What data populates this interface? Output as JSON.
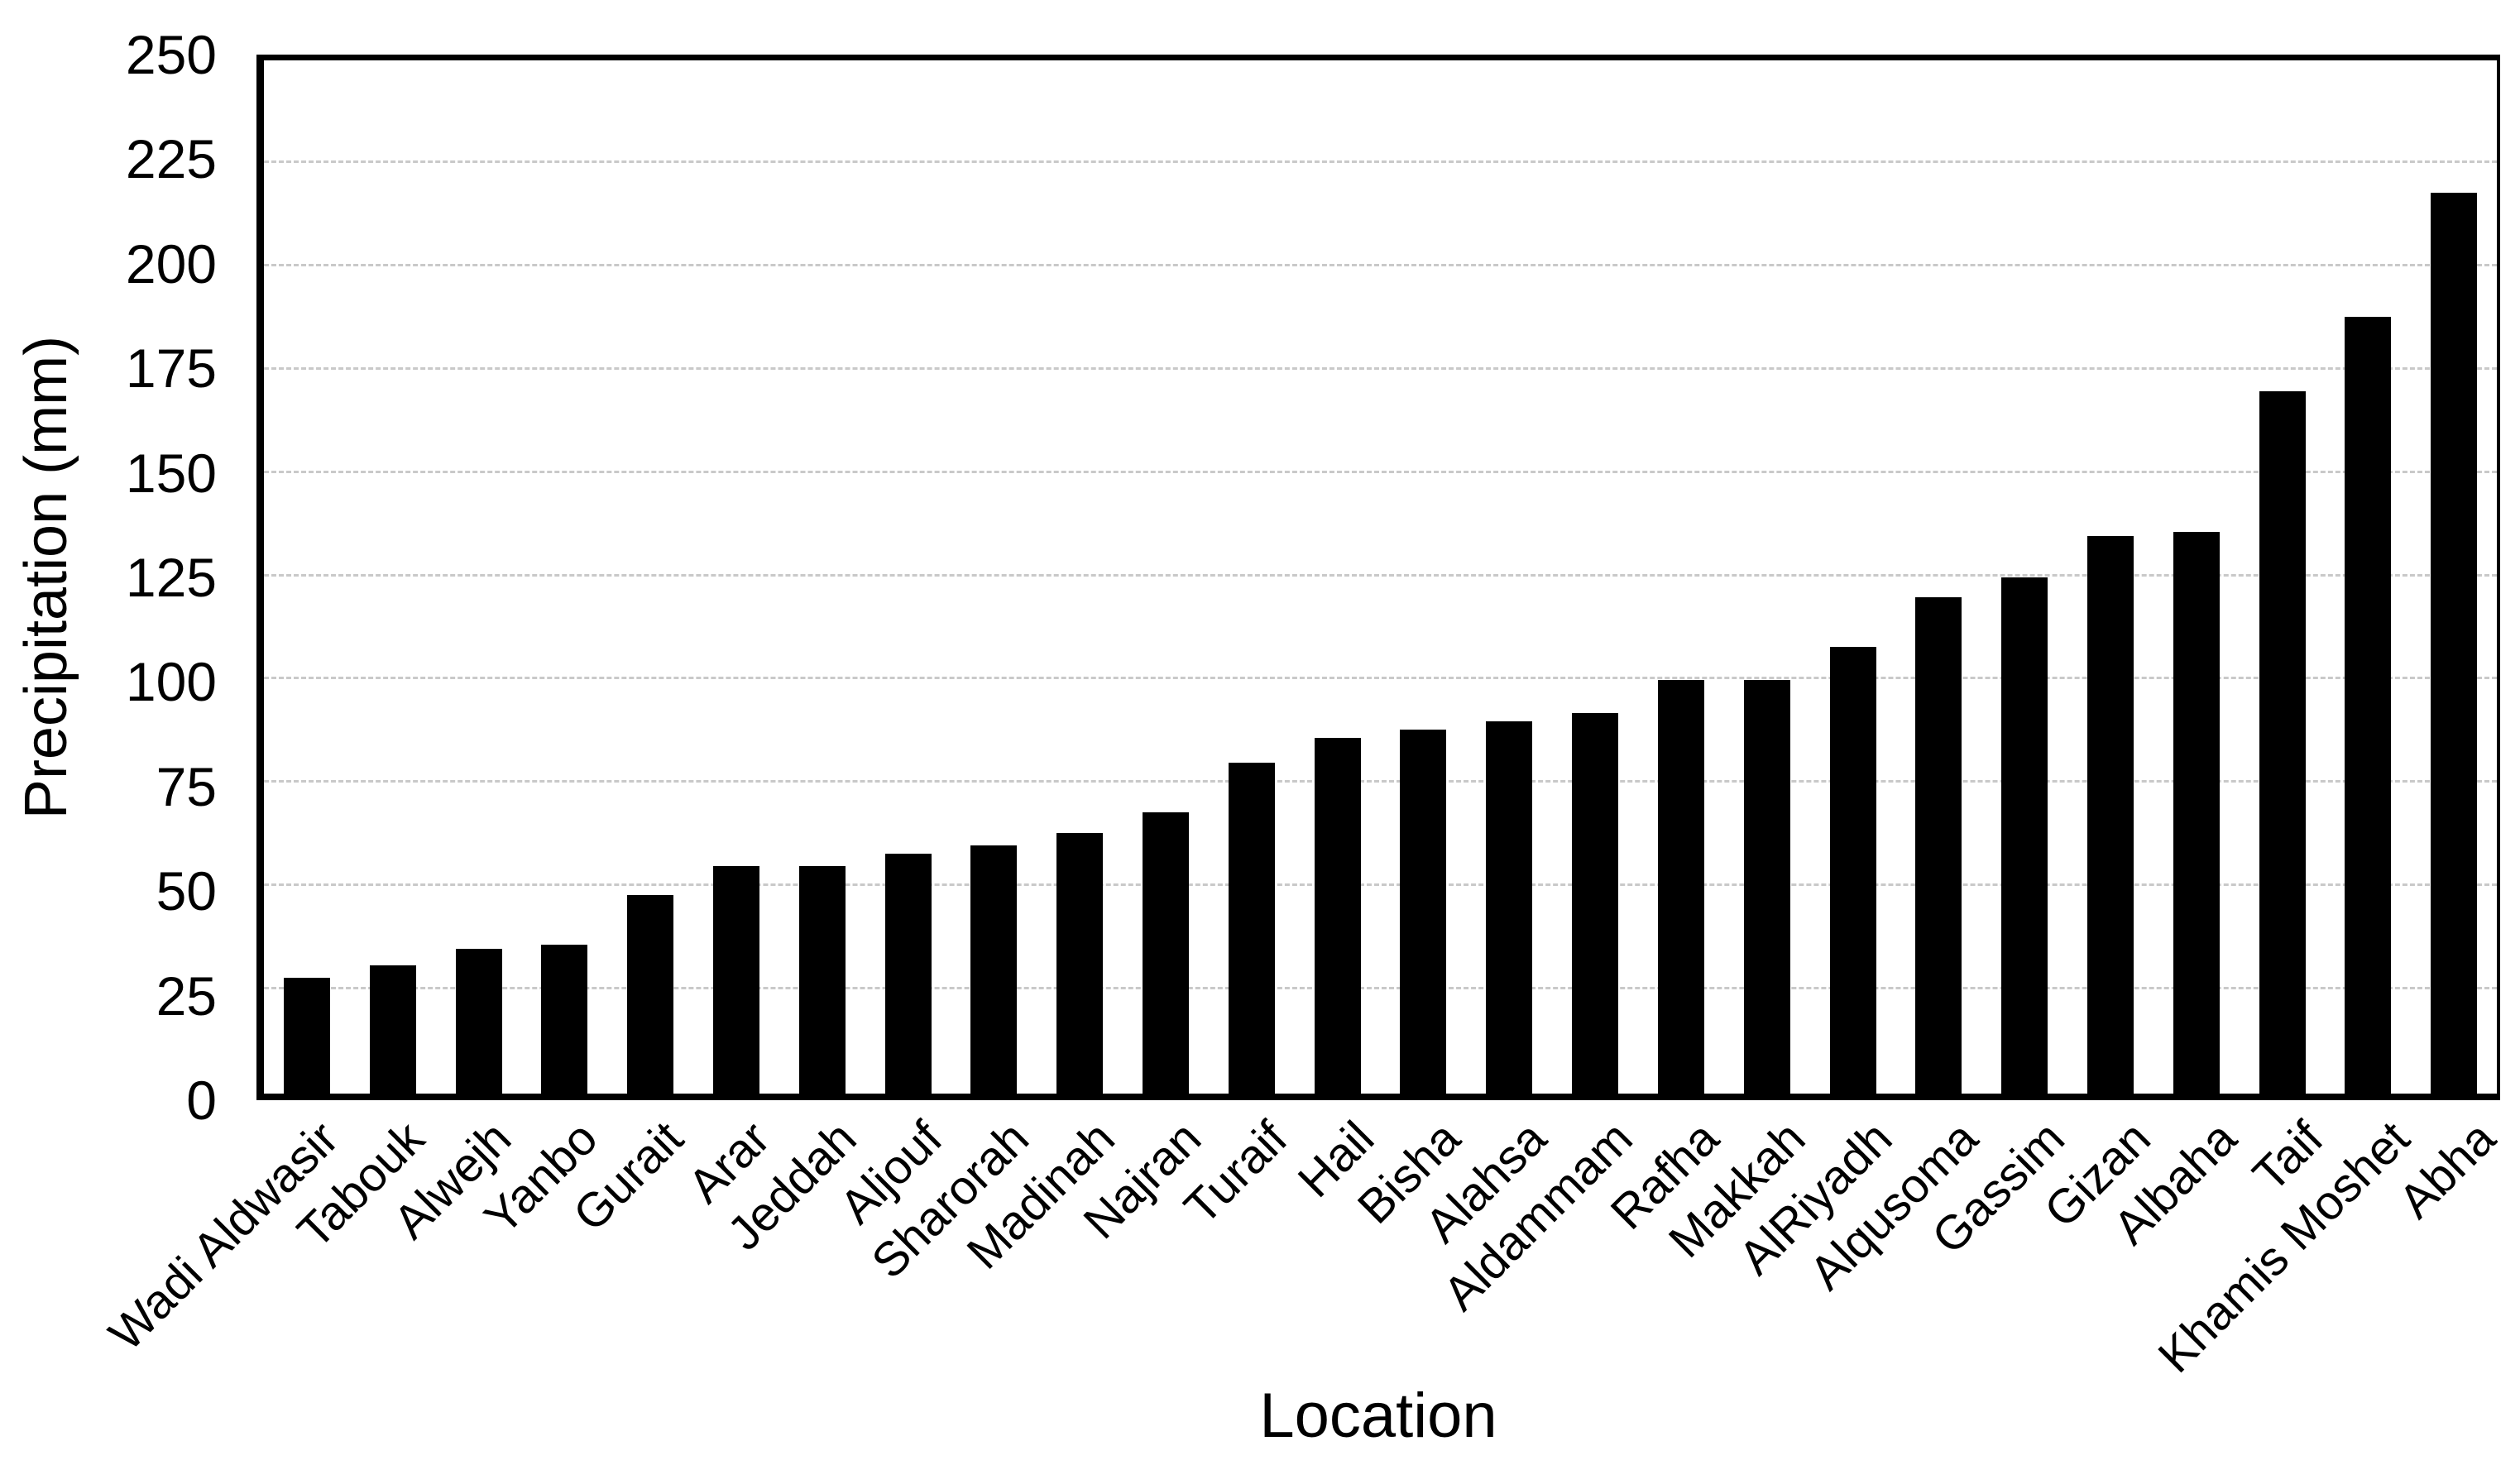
{
  "chart_data": {
    "type": "bar",
    "title": "",
    "xlabel": "Location",
    "ylabel": "Precipitation (mm)",
    "categories": [
      "Wadi Aldwasir",
      "Tabouk",
      "Alwejh",
      "Yanbo",
      "Gurait",
      "Arar",
      "Jeddah",
      "Aljouf",
      "Sharorah",
      "Madinah",
      "Najran",
      "Turaif",
      "Hail",
      "Bisha",
      "Alahsa",
      "Aldammam",
      "Rafha",
      "Makkah",
      "AlRiyadh",
      "Alqusoma",
      "Gassim",
      "Gizan",
      "Albaha",
      "Taif",
      "Khamis Moshet",
      "Abha"
    ],
    "values": [
      28,
      31,
      35,
      36,
      48,
      55,
      55,
      58,
      60,
      63,
      68,
      80,
      86,
      88,
      90,
      92,
      100,
      100,
      108,
      120,
      125,
      135,
      136,
      170,
      188,
      218
    ],
    "yticks": [
      0,
      25,
      50,
      75,
      100,
      125,
      150,
      175,
      200,
      225,
      250
    ],
    "ylim": [
      0,
      250
    ],
    "grid": "horizontal-dashed-gray",
    "legend": "none",
    "bar_color": "#000000",
    "gridline_color": "#c9c9c9",
    "axis_color": "#000000",
    "background_color": "#ffffff",
    "x_tick_rotation_deg": 45
  }
}
